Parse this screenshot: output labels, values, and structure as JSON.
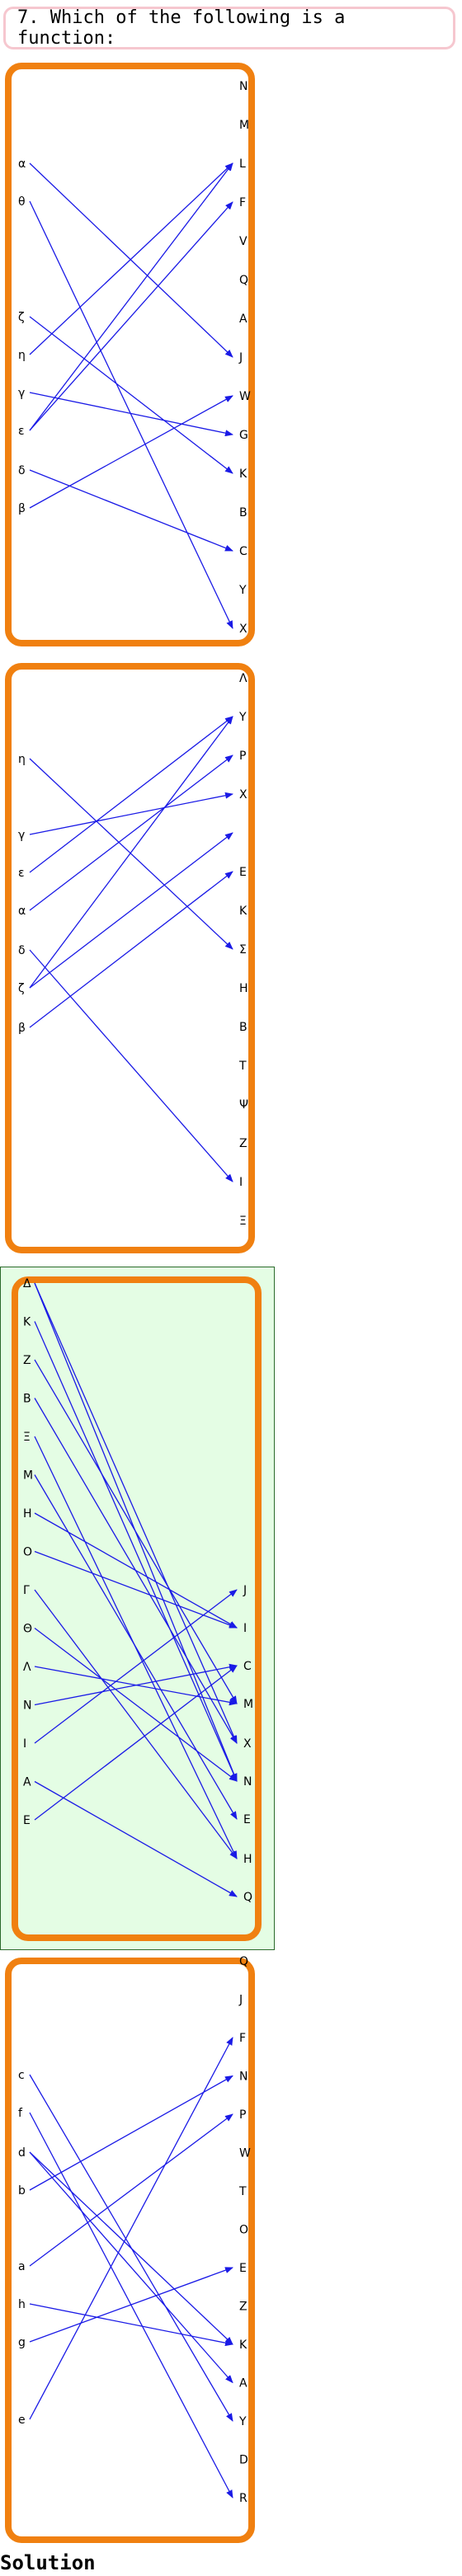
{
  "question": "7. Which of the following is a function:",
  "solution_label": "Solution",
  "colors": {
    "panel_border": "#f08010",
    "arrow": "#1a1ae6",
    "highlight_bg": "#e4fde4",
    "question_border": "#f6c7cf"
  },
  "diagrams": [
    {
      "highlighted": false,
      "left_side": "left",
      "domain": [
        "α",
        "θ",
        "ζ",
        "η",
        "γ",
        "ε",
        "δ",
        "β"
      ],
      "codomain": [
        "N",
        "M",
        "L",
        "F",
        "V",
        "Q",
        "A",
        "J",
        "W",
        "G",
        "K",
        "B",
        "C",
        "Y",
        "X"
      ],
      "mappings": [
        [
          "α",
          "J"
        ],
        [
          "θ",
          "X"
        ],
        [
          "ζ",
          "K"
        ],
        [
          "η",
          "L"
        ],
        [
          "γ",
          "G"
        ],
        [
          "ε",
          "L"
        ],
        [
          "ε",
          "F"
        ],
        [
          "δ",
          "C"
        ],
        [
          "β",
          "W"
        ]
      ]
    },
    {
      "highlighted": false,
      "left_side": "left",
      "domain": [
        "η",
        "γ",
        "ε",
        "α",
        "δ",
        "ζ",
        "β"
      ],
      "codomain": [
        "Λ",
        "Y",
        "P",
        "X",
        "",
        "E",
        "K",
        "Σ",
        "H",
        "B",
        "T",
        "Ψ",
        "Z",
        "I",
        "Ξ"
      ],
      "mappings": [
        [
          "η",
          "Σ"
        ],
        [
          "γ",
          "X"
        ],
        [
          "ε",
          "Y"
        ],
        [
          "α",
          "P"
        ],
        [
          "δ",
          "I"
        ],
        [
          "ζ",
          "Y"
        ],
        [
          "ζ",
          ""
        ],
        [
          "β",
          "E"
        ]
      ]
    },
    {
      "highlighted": true,
      "left_side": "left",
      "domain": [
        "Δ",
        "K",
        "Z",
        "B",
        "Ξ",
        "M",
        "H",
        "O",
        "Γ",
        "Θ",
        "Λ",
        "N",
        "I",
        "A",
        "E"
      ],
      "codomain": [
        "J",
        "I",
        "C",
        "M",
        "X",
        "N",
        "E",
        "H",
        "Q"
      ],
      "mappings": [
        [
          "Δ",
          "X"
        ],
        [
          "K",
          "N"
        ],
        [
          "Z",
          "M"
        ],
        [
          "B",
          "X"
        ],
        [
          "Ξ",
          "H"
        ],
        [
          "M",
          "E"
        ],
        [
          "H",
          "I"
        ],
        [
          "O",
          "I"
        ],
        [
          "Γ",
          "H"
        ],
        [
          "Θ",
          "N"
        ],
        [
          "Λ",
          "M"
        ],
        [
          "N",
          "C"
        ],
        [
          "I",
          "J"
        ],
        [
          "A",
          "Q"
        ],
        [
          "E",
          "C"
        ],
        [
          "Δ",
          "N"
        ]
      ]
    },
    {
      "highlighted": false,
      "left_side": "left",
      "domain": [
        "c",
        "f",
        "d",
        "b",
        "a",
        "h",
        "g",
        "e"
      ],
      "codomain": [
        "Q",
        "J",
        "F",
        "N",
        "P",
        "W",
        "T",
        "O",
        "E",
        "Z",
        "K",
        "A",
        "Y",
        "D",
        "R"
      ],
      "mappings": [
        [
          "c",
          "Y"
        ],
        [
          "f",
          "R"
        ],
        [
          "d",
          "K"
        ],
        [
          "d",
          "A"
        ],
        [
          "b",
          "N"
        ],
        [
          "a",
          "P"
        ],
        [
          "h",
          "K"
        ],
        [
          "g",
          "E"
        ],
        [
          "e",
          "F"
        ]
      ]
    }
  ]
}
